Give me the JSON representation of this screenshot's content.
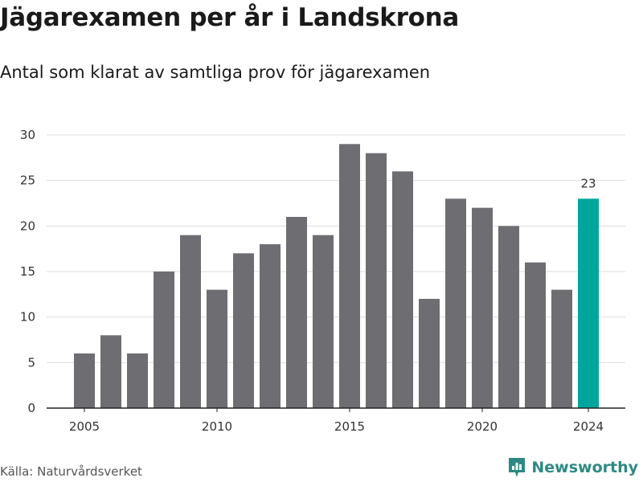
{
  "header": {
    "title": "Jägarexamen per år i Landskrona",
    "subtitle": "Antal som klarat av samtliga prov för jägarexamen"
  },
  "footer": {
    "source": "Källa: Naturvårdsverket",
    "brand": "Newsworthy"
  },
  "colors": {
    "bar": "#6d6d72",
    "highlight": "#00a69c",
    "grid": "#dddddd",
    "axis": "#222222",
    "brand": "#2d8a83"
  },
  "brand_icon": "bar-chart-logo-icon",
  "chart_data": {
    "type": "bar",
    "title": "Jägarexamen per år i Landskrona",
    "subtitle": "Antal som klarat av samtliga prov för jägarexamen",
    "xlabel": "",
    "ylabel": "",
    "categories": [
      2005,
      2006,
      2007,
      2008,
      2009,
      2010,
      2011,
      2012,
      2013,
      2014,
      2015,
      2016,
      2017,
      2018,
      2019,
      2020,
      2021,
      2022,
      2023,
      2024
    ],
    "values": [
      6,
      8,
      6,
      15,
      19,
      13,
      17,
      18,
      21,
      19,
      29,
      28,
      26,
      12,
      23,
      22,
      20,
      16,
      13,
      23
    ],
    "highlight_category": 2024,
    "data_labels": [
      {
        "category": 2024,
        "text": "23"
      }
    ],
    "x_ticks": [
      2005,
      2010,
      2015,
      2020,
      2024
    ],
    "y_ticks": [
      0,
      5,
      10,
      15,
      20,
      25,
      30
    ],
    "ylim": [
      0,
      30
    ],
    "grid": true,
    "legend": "none"
  }
}
